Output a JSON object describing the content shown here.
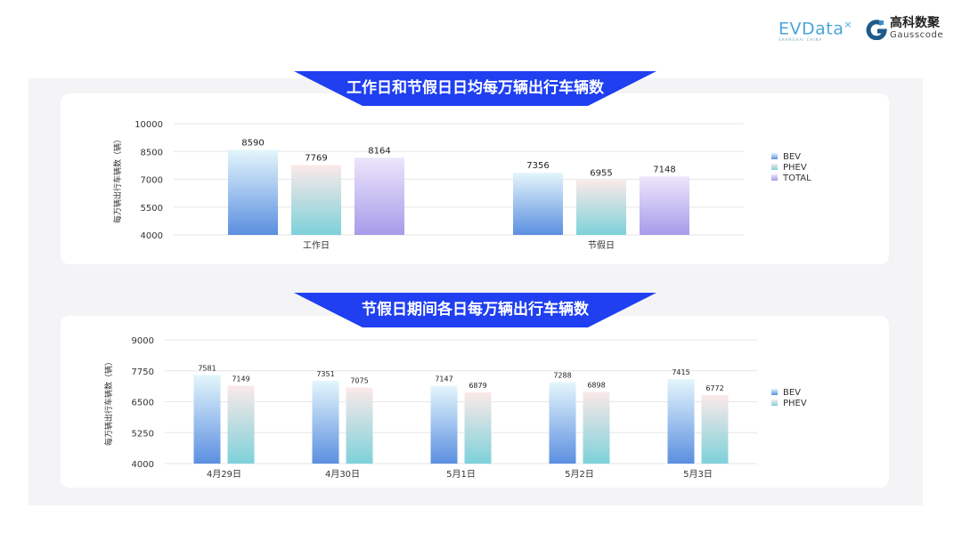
{
  "logos": {
    "evdata": "EVData",
    "evdata_sub": "SHANGHAI CHINA",
    "gauss_cn": "高科数聚",
    "gauss_en": "Gausscode"
  },
  "colors": {
    "banner": "#1f3ff0",
    "bev": [
      "#e4f6fc",
      "#5b8fe0"
    ],
    "phev": [
      "#fbe9e8",
      "#7dd1da"
    ],
    "total": [
      "#ece6fb",
      "#a79bea"
    ]
  },
  "chart_data": [
    {
      "type": "bar",
      "title": "工作日和节假日日均每万辆出行车辆数",
      "ylabel": "每万辆出行车辆数（辆）",
      "ylim": [
        4000,
        10000
      ],
      "yticks": [
        4000,
        5500,
        7000,
        8500,
        10000
      ],
      "grid": true,
      "legend_position": "right",
      "categories": [
        "工作日",
        "节假日"
      ],
      "series": [
        {
          "name": "BEV",
          "values": [
            8590,
            7356
          ]
        },
        {
          "name": "PHEV",
          "values": [
            7769,
            6955
          ]
        },
        {
          "name": "TOTAL",
          "values": [
            8164,
            7148
          ]
        }
      ]
    },
    {
      "type": "bar",
      "title": "节假日期间各日每万辆出行车辆数",
      "ylabel": "每万辆出行车辆数（辆）",
      "ylim": [
        4000,
        9000
      ],
      "yticks": [
        4000,
        5250,
        6500,
        7750,
        9000
      ],
      "grid": true,
      "legend_position": "right",
      "categories": [
        "4月29日",
        "4月30日",
        "5月1日",
        "5月2日",
        "5月3日"
      ],
      "series": [
        {
          "name": "BEV",
          "values": [
            7581,
            7351,
            7147,
            7288,
            7415
          ]
        },
        {
          "name": "PHEV",
          "values": [
            7149,
            7075,
            6879,
            6898,
            6772
          ]
        }
      ]
    }
  ]
}
